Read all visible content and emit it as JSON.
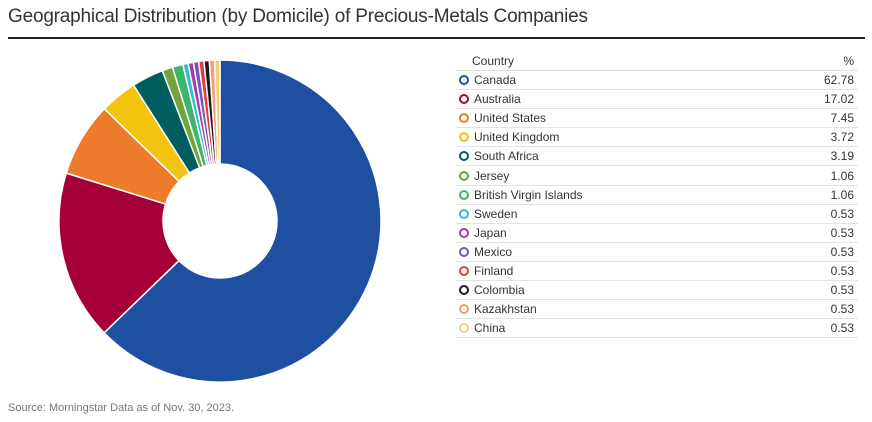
{
  "title": "Geographical Distribution (by Domicile) of Precious-Metals Companies",
  "legend_header": {
    "country": "Country",
    "percent": "%"
  },
  "source": "Source: Morningstar Data as of Nov. 30, 2023.",
  "chart_data": {
    "type": "pie",
    "subtype": "donut",
    "title": "Geographical Distribution (by Domicile) of Precious-Metals Companies",
    "categories": [
      "Canada",
      "Australia",
      "United States",
      "United Kingdom",
      "South Africa",
      "Jersey",
      "British Virgin Islands",
      "Sweden",
      "Japan",
      "Mexico",
      "Finland",
      "Colombia",
      "Kazakhstan",
      "China"
    ],
    "values": [
      62.78,
      17.02,
      7.45,
      3.72,
      3.19,
      1.06,
      1.06,
      0.53,
      0.53,
      0.53,
      0.53,
      0.53,
      0.53,
      0.53
    ],
    "value_labels": [
      "62.78",
      "17.02",
      "7.45",
      "3.72",
      "3.19",
      "1.06",
      "1.06",
      "0.53",
      "0.53",
      "0.53",
      "0.53",
      "0.53",
      "0.53",
      "0.53"
    ],
    "colors": [
      "#1f4fa0",
      "#a6003a",
      "#ee7a2b",
      "#f2c40f",
      "#005f5e",
      "#73a33b",
      "#3cb66a",
      "#34b9d6",
      "#9c3fa9",
      "#7a53b6",
      "#e23d3c",
      "#1a1a1a",
      "#f0a07a",
      "#f5cf78"
    ],
    "legend_position": "right"
  }
}
